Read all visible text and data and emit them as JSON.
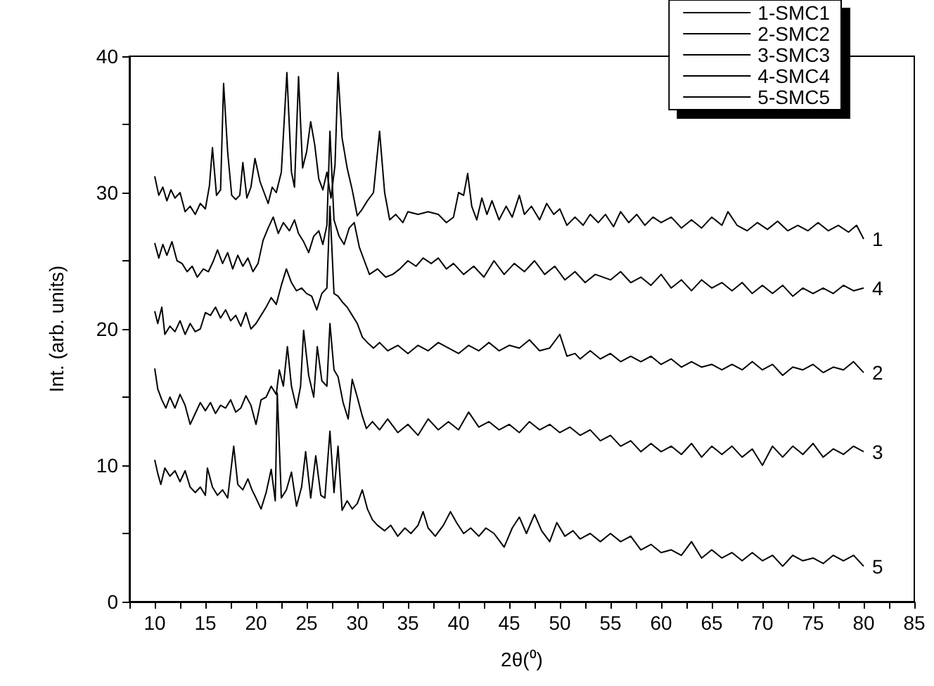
{
  "chart_data": {
    "type": "line",
    "xlabel": "2θ(⁰)",
    "ylabel": "Int. (arb. units)",
    "xlim": [
      7.5,
      85
    ],
    "xticks": [
      {
        "value": 7.5,
        "label": null
      },
      10,
      {
        "value": 12.5,
        "label": null
      },
      15,
      {
        "value": 17.5,
        "label": null
      },
      20,
      {
        "value": 22.5,
        "label": null
      },
      25,
      {
        "value": 27.5,
        "label": null
      },
      30,
      {
        "value": 32.5,
        "label": null
      },
      35,
      {
        "value": 37.5,
        "label": null
      },
      40,
      {
        "value": 42.5,
        "label": null
      },
      45,
      {
        "value": 47.5,
        "label": null
      },
      50,
      {
        "value": 52.5,
        "label": null
      },
      55,
      {
        "value": 57.5,
        "label": null
      },
      60,
      {
        "value": 62.5,
        "label": null
      },
      65,
      {
        "value": 67.5,
        "label": null
      },
      70,
      {
        "value": 72.5,
        "label": null
      },
      75,
      {
        "value": 77.5,
        "label": null
      },
      80,
      {
        "value": 82.5,
        "label": null
      },
      85
    ],
    "ylim": [
      0,
      40
    ],
    "yticks": [
      0,
      {
        "value": 5,
        "label": null
      },
      10,
      {
        "value": 15,
        "label": null
      },
      20,
      {
        "value": 25,
        "label": null
      },
      30,
      {
        "value": 35,
        "label": null
      },
      40
    ],
    "legend": "top right",
    "marker": "none",
    "line_style": "solid",
    "annotations": [
      "1",
      "2",
      "3",
      "4",
      "5"
    ],
    "series": [
      {
        "name": "1-SMC1",
        "color": "#000000",
        "x": [
          10,
          10.4,
          10.8,
          11.2,
          11.6,
          12,
          12.5,
          13,
          13.5,
          14,
          14.5,
          15,
          15.4,
          15.7,
          16.1,
          16.5,
          16.8,
          17.2,
          17.6,
          18,
          18.4,
          18.7,
          19.1,
          19.5,
          19.9,
          20.4,
          20.8,
          21.2,
          21.6,
          22,
          22.5,
          23.05,
          23.5,
          23.8,
          24.2,
          24.6,
          25,
          25.4,
          25.8,
          26.2,
          26.6,
          27,
          27.4,
          27.8,
          28.1,
          28.5,
          29,
          29.5,
          30,
          30.5,
          31,
          31.6,
          32.2,
          32.7,
          33.2,
          33.8,
          34.5,
          35,
          36,
          37,
          38,
          38.8,
          39.5,
          40,
          40.5,
          40.9,
          41.3,
          41.8,
          42.3,
          42.8,
          43.3,
          44,
          44.7,
          45.3,
          46,
          46.5,
          47.2,
          48,
          48.7,
          49.4,
          50,
          50.7,
          51.5,
          52.3,
          53,
          53.8,
          54.5,
          55.3,
          56,
          56.8,
          57.6,
          58.4,
          59.2,
          60,
          61,
          62,
          63,
          64,
          65,
          66,
          66.6,
          67.5,
          68.5,
          69.5,
          70.5,
          71.5,
          72.5,
          73.5,
          74.5,
          75.5,
          76.5,
          77.5,
          78.5,
          79.3,
          80
        ],
        "values": [
          31.2,
          29.8,
          30.4,
          29.4,
          30.2,
          29.6,
          30.0,
          28.6,
          29.0,
          28.4,
          29.2,
          28.8,
          30.5,
          33.3,
          29.8,
          30.2,
          38.0,
          33.0,
          29.8,
          29.5,
          29.8,
          32.2,
          29.6,
          30.4,
          32.5,
          30.8,
          30.0,
          29.2,
          30.4,
          30.0,
          31.5,
          38.8,
          31.5,
          30.4,
          38.5,
          31.8,
          33.0,
          35.2,
          33.5,
          31.0,
          30.2,
          31.5,
          29.6,
          32.0,
          38.8,
          34.0,
          31.8,
          30.2,
          28.3,
          28.8,
          29.4,
          30.0,
          34.5,
          30.0,
          28.0,
          28.4,
          27.8,
          28.6,
          28.4,
          28.6,
          28.4,
          27.8,
          28.2,
          30.0,
          29.8,
          31.4,
          29.0,
          28.0,
          29.6,
          28.4,
          29.4,
          28.0,
          29.0,
          28.2,
          29.8,
          28.4,
          29.0,
          28.0,
          29.2,
          28.4,
          28.8,
          27.6,
          28.2,
          27.6,
          28.4,
          27.8,
          28.4,
          27.5,
          28.6,
          27.8,
          28.4,
          27.6,
          28.2,
          27.8,
          28.2,
          27.4,
          28.0,
          27.4,
          28.2,
          27.6,
          28.6,
          27.6,
          27.2,
          27.8,
          27.3,
          27.9,
          27.2,
          27.6,
          27.2,
          27.8,
          27.2,
          27.6,
          27.1,
          27.6,
          26.6
        ]
      },
      {
        "name": "2-SMC2",
        "color": "#000000",
        "x": [
          10,
          10.3,
          10.7,
          11,
          11.5,
          12,
          12.5,
          13,
          13.5,
          14,
          14.5,
          15,
          15.5,
          16,
          16.5,
          17,
          17.5,
          18,
          18.5,
          19,
          19.5,
          20,
          20.5,
          21,
          21.5,
          22,
          22.5,
          23,
          23.5,
          24,
          24.5,
          25,
          25.5,
          26,
          26.5,
          27,
          27.3,
          27.7,
          28.1,
          28.5,
          29,
          29.5,
          30,
          30.5,
          31,
          31.6,
          32.2,
          33,
          34,
          35,
          36,
          37,
          38,
          39,
          40,
          41,
          42,
          43,
          44,
          45,
          46,
          47,
          48,
          49,
          50,
          50.7,
          51.5,
          52,
          53,
          54,
          55,
          56,
          57,
          58,
          59,
          60,
          61,
          62,
          63,
          64,
          65,
          66,
          67,
          68,
          69,
          70,
          71,
          72,
          73,
          74,
          75,
          76,
          77,
          78,
          79,
          80
        ],
        "values": [
          21.3,
          20.4,
          21.6,
          19.6,
          20.2,
          19.8,
          20.6,
          19.6,
          20.4,
          19.8,
          20.0,
          21.2,
          21.0,
          21.6,
          20.8,
          21.4,
          20.6,
          21.0,
          20.2,
          21.2,
          20.0,
          20.4,
          21.0,
          21.6,
          22.3,
          21.8,
          23.2,
          24.4,
          23.4,
          22.8,
          23.0,
          22.6,
          22.4,
          21.4,
          22.6,
          23.0,
          29.0,
          22.6,
          22.4,
          22.0,
          21.6,
          21.0,
          20.4,
          19.4,
          19.0,
          18.6,
          19.0,
          18.4,
          18.8,
          18.2,
          18.8,
          18.4,
          19.0,
          18.6,
          18.2,
          18.8,
          18.4,
          19.0,
          18.4,
          18.8,
          18.6,
          19.2,
          18.4,
          18.6,
          19.6,
          18.0,
          18.2,
          17.8,
          18.4,
          17.8,
          18.2,
          17.6,
          18.0,
          17.6,
          18.0,
          17.4,
          17.8,
          17.2,
          17.6,
          17.2,
          17.4,
          17.0,
          17.4,
          17.0,
          17.6,
          17.0,
          17.4,
          16.6,
          17.2,
          17.0,
          17.4,
          16.8,
          17.2,
          17.0,
          17.6,
          16.8
        ]
      },
      {
        "name": "3-SMC3",
        "color": "#000000",
        "x": [
          10,
          10.3,
          10.7,
          11.1,
          11.5,
          12,
          12.5,
          13,
          13.5,
          14,
          14.5,
          15,
          15.5,
          16,
          16.5,
          17,
          17.5,
          18,
          18.5,
          19,
          19.5,
          20,
          20.5,
          21,
          21.5,
          22,
          22.3,
          22.7,
          23.1,
          23.5,
          24,
          24.4,
          24.7,
          25.2,
          25.7,
          26.05,
          26.5,
          27,
          27.3,
          27.7,
          28.1,
          28.6,
          29.1,
          29.5,
          30,
          30.5,
          30.9,
          31.5,
          32.2,
          33,
          34,
          35,
          36,
          37,
          38,
          39,
          40,
          41,
          42,
          43,
          44,
          45,
          46,
          47,
          48,
          49,
          50,
          51,
          52,
          53,
          54,
          55,
          56,
          57,
          58,
          59,
          60,
          61,
          62,
          63,
          64,
          65,
          66,
          67,
          68,
          69,
          70,
          71,
          72,
          73,
          74,
          75,
          76,
          77,
          78,
          79,
          80
        ],
        "values": [
          17.1,
          15.6,
          14.8,
          14.2,
          15.0,
          14.2,
          15.2,
          14.4,
          13.0,
          13.8,
          14.6,
          14.0,
          14.6,
          13.8,
          14.4,
          14.2,
          14.8,
          13.9,
          14.2,
          15.1,
          14.4,
          13.0,
          14.8,
          15.0,
          15.8,
          15.2,
          17.0,
          15.8,
          18.7,
          15.8,
          14.2,
          15.8,
          19.9,
          16.6,
          15.0,
          18.7,
          16.2,
          15.8,
          20.4,
          17.0,
          16.5,
          14.6,
          13.4,
          16.3,
          15.0,
          13.6,
          12.7,
          13.2,
          12.6,
          13.4,
          12.4,
          13.0,
          12.2,
          13.4,
          12.6,
          13.2,
          12.6,
          13.9,
          12.8,
          13.2,
          12.6,
          13.0,
          12.4,
          13.2,
          12.6,
          13.0,
          12.4,
          12.8,
          12.2,
          12.6,
          11.8,
          12.2,
          11.4,
          11.8,
          11.0,
          11.6,
          11.0,
          11.4,
          10.8,
          11.6,
          10.6,
          11.4,
          10.8,
          11.4,
          10.6,
          11.2,
          10.0,
          11.4,
          10.6,
          11.4,
          10.8,
          11.6,
          10.6,
          11.2,
          10.8,
          11.4,
          11.0
        ]
      },
      {
        "name": "4-SMC4",
        "color": "#000000",
        "x": [
          10,
          10.4,
          10.8,
          11.2,
          11.7,
          12.2,
          12.7,
          13.2,
          13.7,
          14.2,
          14.8,
          15.3,
          15.8,
          16.2,
          16.7,
          17.2,
          17.7,
          18.2,
          18.7,
          19.2,
          19.7,
          20.2,
          20.7,
          21.2,
          21.7,
          22.2,
          22.7,
          23.3,
          23.8,
          24.2,
          24.7,
          25.2,
          25.7,
          26.2,
          26.6,
          27,
          27.3,
          27.7,
          28.2,
          28.7,
          29.2,
          29.7,
          30.2,
          30.7,
          31.2,
          32,
          32.8,
          33.5,
          34.2,
          35,
          35.8,
          36.5,
          37.3,
          38,
          38.8,
          39.5,
          40.5,
          41.5,
          42.5,
          43.5,
          44.5,
          45.5,
          46.5,
          47.5,
          48.5,
          49.5,
          50.5,
          51.5,
          52.5,
          53.5,
          55,
          56,
          57,
          58,
          59,
          60,
          61,
          62,
          63,
          64,
          65,
          66,
          67,
          68,
          69,
          70,
          71,
          72,
          73,
          74,
          75,
          76,
          77,
          78,
          79,
          80
        ],
        "values": [
          26.3,
          25.2,
          26.2,
          25.4,
          26.4,
          25.0,
          24.8,
          24.2,
          24.6,
          23.8,
          24.4,
          24.2,
          25.0,
          25.8,
          24.8,
          25.6,
          24.4,
          25.4,
          24.6,
          25.2,
          24.2,
          24.8,
          26.5,
          27.4,
          28.2,
          27.0,
          27.8,
          27.2,
          28.0,
          27.0,
          26.4,
          25.6,
          26.8,
          27.2,
          26.2,
          27.6,
          34.5,
          28.0,
          26.8,
          26.2,
          27.4,
          27.8,
          26.0,
          25.0,
          24.0,
          24.4,
          23.8,
          24.0,
          24.4,
          25.0,
          24.6,
          25.2,
          24.8,
          25.2,
          24.4,
          24.8,
          24.0,
          24.6,
          23.8,
          25.0,
          24.0,
          24.8,
          24.2,
          25.0,
          24.0,
          24.6,
          23.6,
          24.2,
          23.4,
          24.0,
          23.6,
          24.2,
          23.4,
          23.8,
          23.2,
          24.0,
          23.0,
          23.6,
          22.8,
          23.6,
          23.0,
          23.4,
          22.8,
          23.4,
          22.6,
          23.2,
          22.6,
          23.2,
          22.4,
          23.0,
          22.6,
          23.0,
          22.6,
          23.2,
          22.8,
          23.0
        ]
      },
      {
        "name": "5-SMC5",
        "color": "#000000",
        "x": [
          10,
          10.3,
          10.6,
          11,
          11.5,
          12,
          12.5,
          13,
          13.5,
          14,
          14.5,
          15,
          15.2,
          15.7,
          16.2,
          16.7,
          17.2,
          17.8,
          18.2,
          18.7,
          19.2,
          19.6,
          20,
          20.5,
          21,
          21.5,
          21.9,
          22.1,
          22.5,
          23,
          23.5,
          24,
          24.5,
          24.9,
          25.4,
          25.9,
          26.4,
          26.8,
          27.3,
          27.7,
          28.1,
          28.5,
          29,
          29.5,
          30,
          30.5,
          31,
          31.5,
          32,
          32.7,
          33.3,
          34,
          34.7,
          35.3,
          36,
          36.5,
          37,
          37.7,
          38.5,
          39.2,
          39.8,
          40.5,
          41.2,
          42,
          42.7,
          43.5,
          44.5,
          45.3,
          46,
          46.7,
          47.5,
          48.2,
          49,
          49.7,
          50.5,
          51.3,
          52,
          53,
          54,
          55,
          56,
          57,
          58,
          59,
          60,
          61,
          62,
          63,
          64,
          65,
          66,
          67,
          68,
          69,
          70,
          71,
          72,
          73,
          74,
          75,
          76,
          77,
          78,
          79,
          80
        ],
        "values": [
          10.4,
          9.4,
          8.6,
          9.8,
          9.2,
          9.6,
          8.8,
          9.6,
          8.4,
          8.0,
          8.4,
          7.8,
          9.8,
          8.4,
          7.8,
          8.2,
          7.6,
          11.4,
          8.6,
          8.2,
          9.0,
          8.2,
          7.6,
          6.8,
          8.0,
          9.7,
          7.4,
          15.3,
          7.6,
          8.2,
          9.5,
          7.0,
          8.4,
          11.0,
          7.6,
          10.7,
          7.8,
          7.6,
          12.5,
          8.0,
          11.4,
          6.7,
          7.4,
          6.8,
          7.2,
          8.2,
          6.8,
          6.0,
          5.6,
          5.2,
          5.6,
          4.8,
          5.4,
          5.0,
          5.6,
          6.6,
          5.4,
          4.8,
          5.6,
          6.6,
          5.8,
          5.0,
          5.4,
          4.8,
          5.4,
          5.0,
          4.0,
          5.4,
          6.2,
          5.0,
          6.4,
          5.2,
          4.4,
          5.8,
          4.8,
          5.2,
          4.6,
          5.0,
          4.4,
          5.0,
          4.4,
          4.8,
          3.8,
          4.2,
          3.6,
          3.8,
          3.4,
          4.4,
          3.2,
          3.8,
          3.2,
          3.6,
          3.0,
          3.6,
          3.0,
          3.4,
          2.6,
          3.4,
          3.0,
          3.2,
          2.8,
          3.4,
          3.0,
          3.4,
          2.6
        ]
      }
    ]
  }
}
